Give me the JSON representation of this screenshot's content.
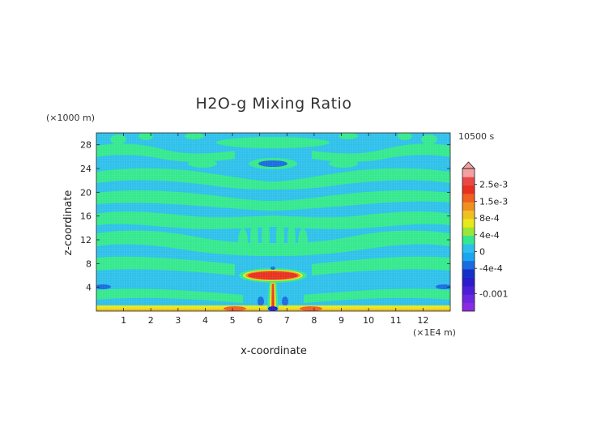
{
  "chart_data": {
    "type": "heatmap",
    "title": "H2O-g Mixing Ratio",
    "xlabel": "x-coordinate",
    "ylabel": "z-coordinate",
    "x_unit": "(×1E4 m)",
    "y_unit": "(×1000 m)",
    "time_label": "10500 s",
    "xlim": [
      0,
      13
    ],
    "ylim": [
      0,
      30
    ],
    "x_ticks": [
      1,
      2,
      3,
      4,
      5,
      6,
      7,
      8,
      9,
      10,
      11,
      12
    ],
    "y_ticks": [
      4,
      8,
      12,
      16,
      20,
      24,
      28
    ],
    "colorbar": {
      "labels": [
        "2.5e-3",
        "1.5e-3",
        "8e-4",
        "4e-4",
        "0",
        "-4e-4",
        "-0.001"
      ],
      "label_values": [
        0.0025,
        0.0015,
        0.0008,
        0.0004,
        0,
        -0.0004,
        -0.001
      ],
      "levels": [
        -0.0016,
        -0.0013,
        -0.001,
        -0.0008,
        -0.0006,
        -0.0004,
        -0.0002,
        0,
        0.0002,
        0.0004,
        0.0006,
        0.0008,
        0.001,
        0.0015,
        0.002,
        0.0025,
        0.003
      ],
      "colors": [
        "#8a2be2",
        "#6a28e0",
        "#4b1fd6",
        "#2a1ccc",
        "#1530c8",
        "#1a6be0",
        "#1aa6f0",
        "#2ec0ea",
        "#35e88e",
        "#9ae63a",
        "#e8e81a",
        "#f0c020",
        "#f09020",
        "#f06020",
        "#e83020",
        "#e84848",
        "#f4a0a0"
      ]
    },
    "features": [
      {
        "name": "surface moist layer",
        "x": [
          0,
          13
        ],
        "z": [
          0,
          0.6
        ],
        "value": 0.0008
      },
      {
        "name": "plume stem",
        "x": [
          6.4,
          6.4
        ],
        "z": [
          0.5,
          5.5
        ],
        "value": 0.0015
      },
      {
        "name": "anvil",
        "x": [
          5.5,
          7.3
        ],
        "z": [
          5.5,
          6.8
        ],
        "value": 0.0025
      }
    ]
  },
  "colors": {
    "background_field": "#2ec0ea",
    "positive_band": "#35e88e",
    "negative_patch": "#1a6be0"
  }
}
